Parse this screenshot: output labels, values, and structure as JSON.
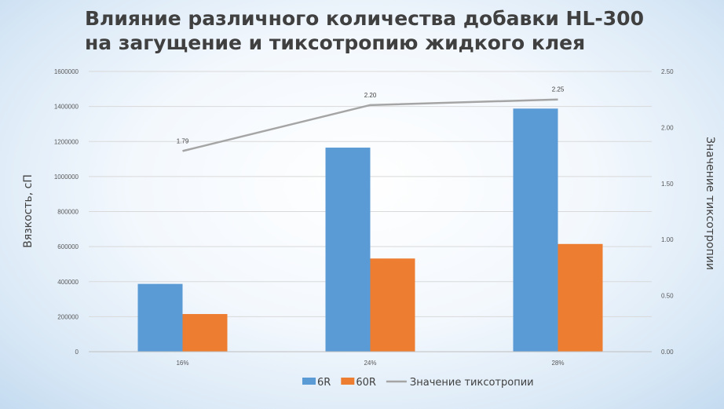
{
  "chart_data": {
    "type": "bar",
    "title_lines": [
      "Влияние различного количества добавки HL-300",
      "на загущение и тиксотропию жидкого клея"
    ],
    "categories": [
      "16%",
      "24%",
      "28%"
    ],
    "series": [
      {
        "name": "6R",
        "type": "bar",
        "axis": "left",
        "color": "#5b9bd5",
        "values": [
          387000,
          1165000,
          1388000
        ]
      },
      {
        "name": "60R",
        "type": "bar",
        "axis": "left",
        "color": "#ed7d31",
        "values": [
          215000,
          532000,
          615000
        ]
      },
      {
        "name": "Значение тиксотропии",
        "type": "line",
        "axis": "right",
        "color": "#a5a5a5",
        "values": [
          1.79,
          2.2,
          2.25
        ],
        "labels": [
          "1.79",
          "2.20",
          "2.25"
        ]
      }
    ],
    "ylabel": "Вязкость, сП",
    "y2label": "Значение тиксотропии",
    "ylim": [
      0,
      1600000
    ],
    "y_ticks": [
      "0",
      "200000",
      "400000",
      "600000",
      "800000",
      "1000000",
      "1200000",
      "1400000",
      "1600000"
    ],
    "y2lim": [
      0,
      2.5
    ],
    "y2_ticks": [
      "0.00",
      "0.50",
      "1.00",
      "1.50",
      "2.00",
      "2.50"
    ],
    "grid": true,
    "legend_position": "bottom"
  }
}
